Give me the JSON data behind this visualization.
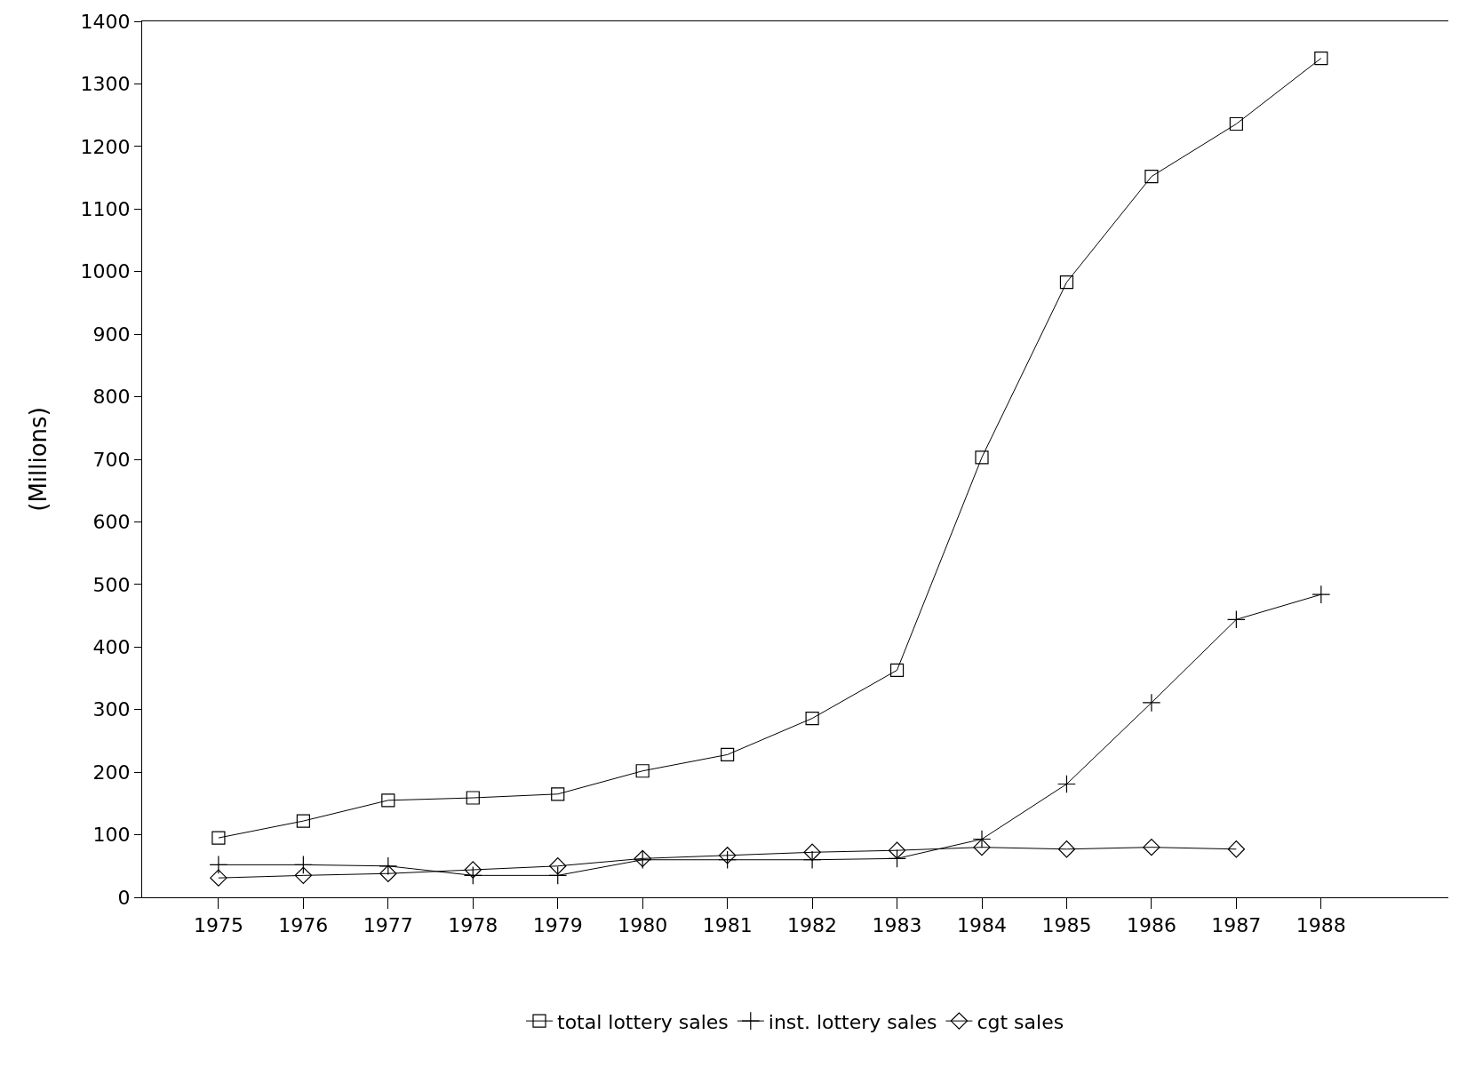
{
  "chart_data": {
    "type": "line",
    "ylabel": "(Millions)",
    "x": [
      1975,
      1976,
      1977,
      1978,
      1979,
      1980,
      1981,
      1982,
      1983,
      1984,
      1985,
      1986,
      1987,
      1988
    ],
    "xlim": [
      1974.1,
      1989.5
    ],
    "xticks": [
      1975,
      1976,
      1977,
      1978,
      1979,
      1980,
      1981,
      1982,
      1983,
      1984,
      1985,
      1986,
      1987,
      1988
    ],
    "ylim": [
      0,
      1400
    ],
    "yticks": [
      0,
      100,
      200,
      300,
      400,
      500,
      600,
      700,
      800,
      900,
      1000,
      1100,
      1200,
      1300,
      1400
    ],
    "grid": false,
    "legend": "bottom",
    "line_style": "solid",
    "series": [
      {
        "name": "total lottery sales",
        "color": "#000000",
        "marker": "square",
        "values": [
          95,
          122,
          155,
          159,
          165,
          202,
          228,
          286,
          363,
          703,
          983,
          1152,
          1236,
          1341
        ]
      },
      {
        "name": "inst. lottery sales",
        "color": "#000000",
        "marker": "cross",
        "values": [
          52,
          52,
          50,
          35,
          35,
          60,
          60,
          60,
          62,
          93,
          181,
          311,
          444,
          484
        ]
      },
      {
        "name": "cgt sales",
        "color": "#000000",
        "marker": "diamond",
        "values": [
          31,
          35,
          38,
          44,
          50,
          62,
          67,
          72,
          75,
          80,
          77,
          80,
          77,
          null
        ]
      }
    ]
  }
}
